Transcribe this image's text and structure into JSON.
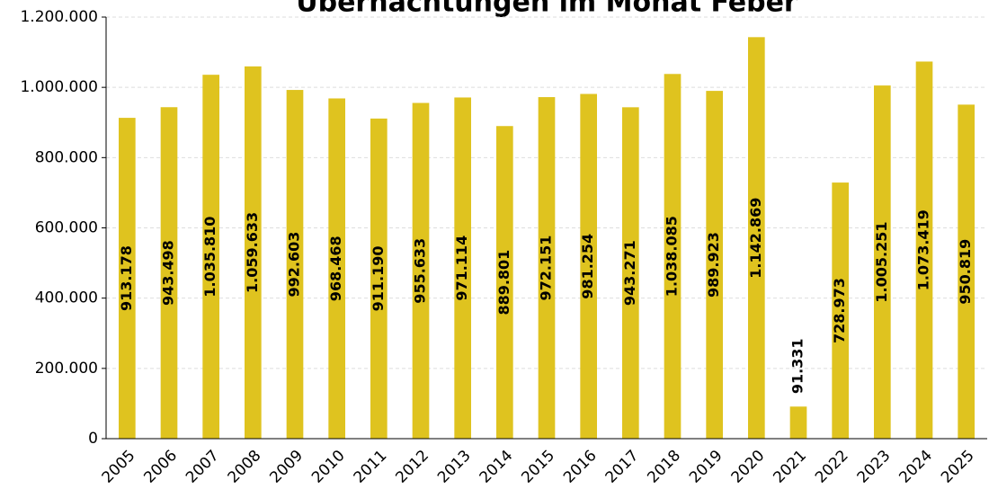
{
  "chart_data": {
    "type": "bar",
    "title": "Übernachtungen im Monat Feber",
    "categories": [
      "2005",
      "2006",
      "2007",
      "2008",
      "2009",
      "2010",
      "2011",
      "2012",
      "2013",
      "2014",
      "2015",
      "2016",
      "2017",
      "2018",
      "2019",
      "2020",
      "2021",
      "2022",
      "2023",
      "2024",
      "2025"
    ],
    "values": [
      913178,
      943498,
      1035810,
      1059633,
      992603,
      968468,
      911190,
      955633,
      971114,
      889801,
      972151,
      981254,
      943271,
      1038085,
      989923,
      1142869,
      91331,
      728973,
      1005251,
      1073419,
      950819
    ],
    "value_labels": [
      "913.178",
      "943.498",
      "1.035.810",
      "1.059.633",
      "992.603",
      "968.468",
      "911.190",
      "955.633",
      "971.114",
      "889.801",
      "972.151",
      "981.254",
      "943.271",
      "1.038.085",
      "989.923",
      "1.142.869",
      "91.331",
      "728.973",
      "1.005.251",
      "1.073.419",
      "950.819"
    ],
    "color": "#dfc31f",
    "ylim": [
      0,
      1200000
    ],
    "yticks": [
      0,
      {
        "value": 200000,
        "label": "200.000"
      },
      {
        "value": 400000,
        "label": "400.000"
      },
      {
        "value": 600000,
        "label": "600.000"
      },
      {
        "value": 800000,
        "label": "800.000"
      },
      {
        "value": 1000000,
        "label": "1.000.000"
      },
      {
        "value": 1200000,
        "label": "1.200.000"
      }
    ],
    "grid": true
  }
}
